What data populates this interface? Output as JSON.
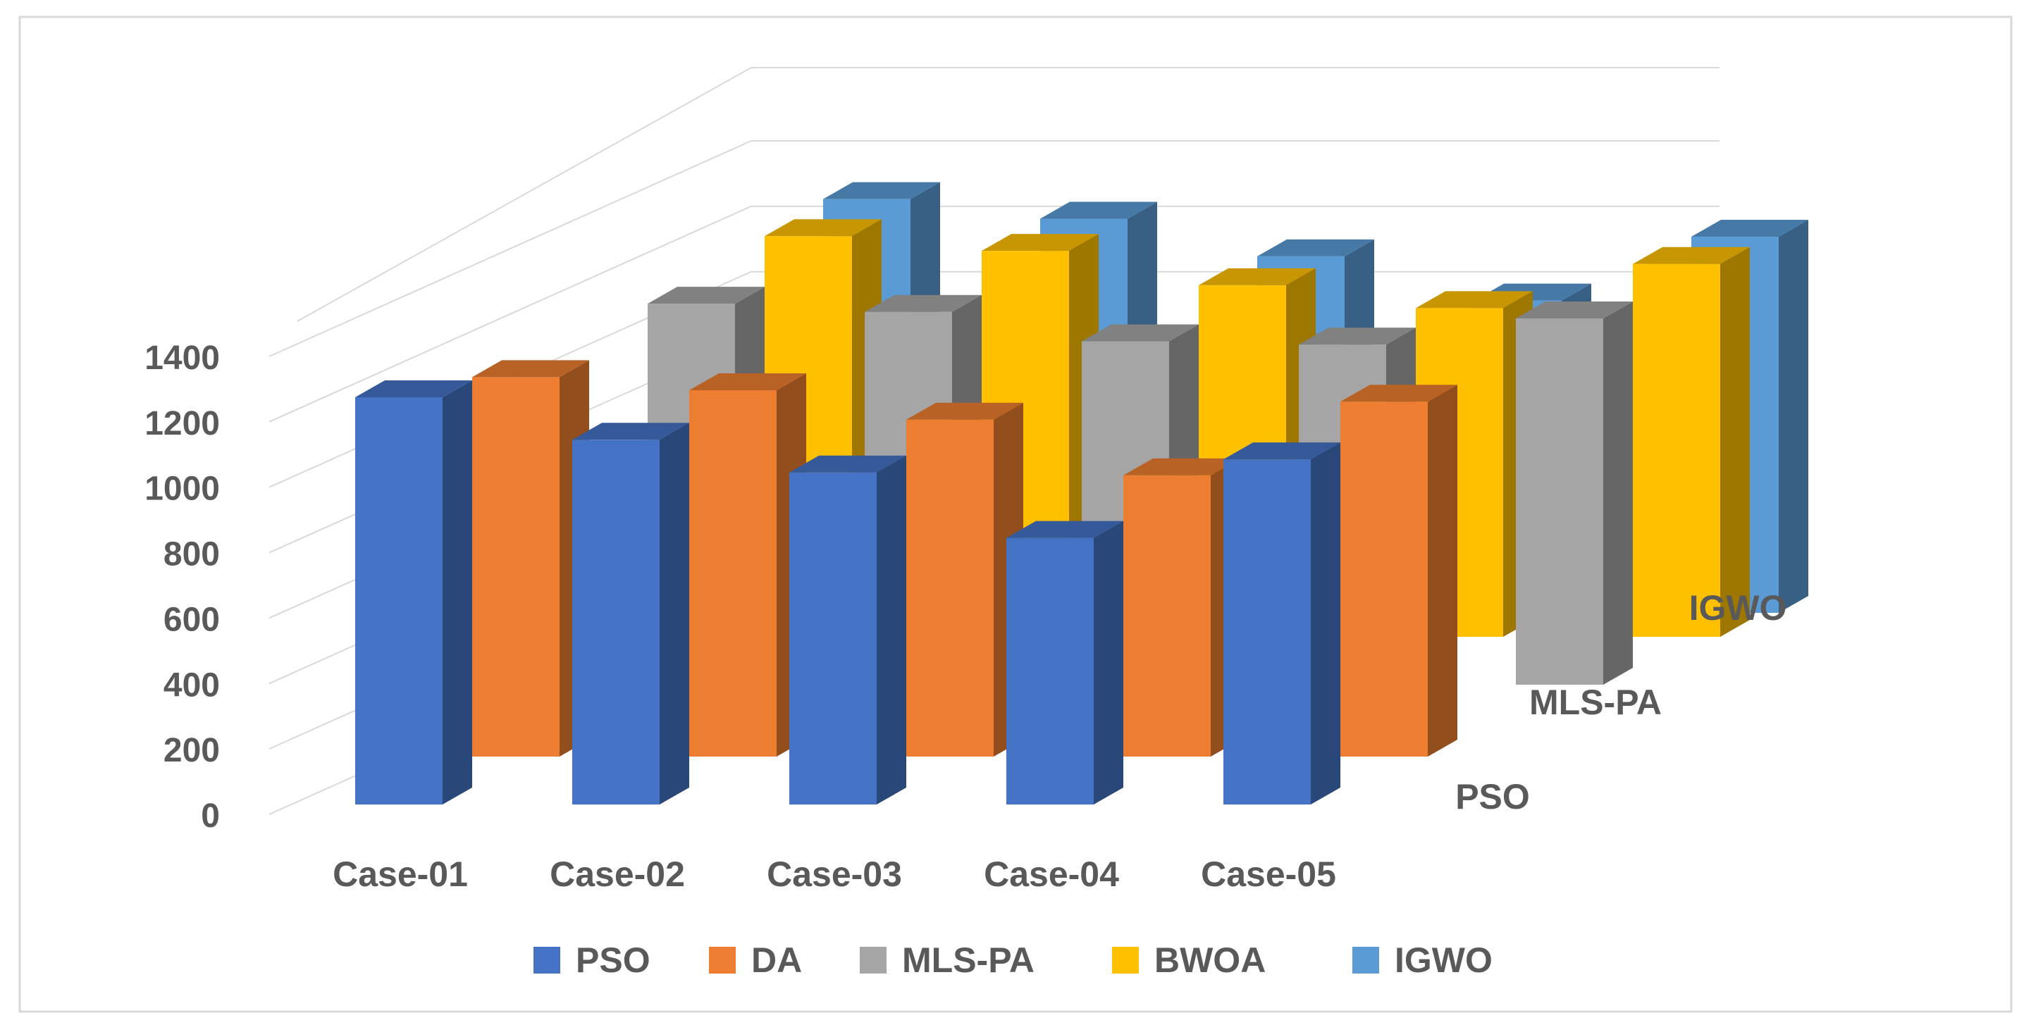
{
  "chart_data": {
    "type": "bar",
    "subtype": "3d-clustered-column",
    "title": "",
    "xlabel": "",
    "ylabel": "",
    "ylim": [
      0,
      1400
    ],
    "yticks": [
      0,
      200,
      400,
      600,
      800,
      1000,
      1200,
      1400
    ],
    "ytick_labels": [
      "0",
      "200",
      "400",
      "600",
      "800",
      "1000",
      "1200",
      "1400"
    ],
    "categories": [
      "Case-01",
      "Case-02",
      "Case-03",
      "Case-04",
      "Case-05"
    ],
    "depth_axis_labels": [
      "PSO",
      "MLS-PA",
      "IGWO"
    ],
    "legend_position": "bottom",
    "grid": true,
    "series": [
      {
        "name": "PSO",
        "color": "#4472C4",
        "values": [
          1245,
          1115,
          1015,
          815,
          1055
        ]
      },
      {
        "name": "DA",
        "color": "#ED7D31",
        "values": [
          1160,
          1120,
          1030,
          860,
          1085
        ]
      },
      {
        "name": "MLS-PA",
        "color": "#A5A5A5",
        "values": [
          1165,
          1140,
          1050,
          1040,
          1120
        ]
      },
      {
        "name": "BWOA",
        "color": "#FFC000",
        "values": [
          1225,
          1180,
          1075,
          1005,
          1140
        ]
      },
      {
        "name": "IGWO",
        "color": "#5B9BD5",
        "values": [
          1265,
          1205,
          1090,
          955,
          1150
        ]
      }
    ]
  }
}
